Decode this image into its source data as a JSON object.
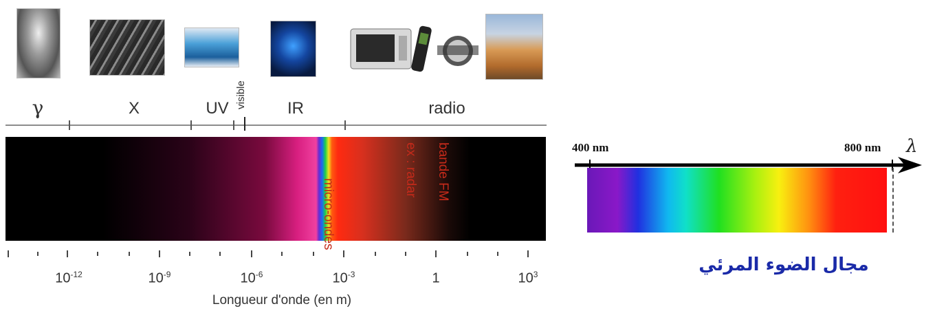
{
  "spectrum": {
    "bands": [
      {
        "id": "gamma",
        "label": "γ"
      },
      {
        "id": "x",
        "label": "X"
      },
      {
        "id": "uv",
        "label": "UV"
      },
      {
        "id": "visible",
        "label": "visible"
      },
      {
        "id": "ir",
        "label": "IR"
      },
      {
        "id": "radio",
        "label": "radio"
      }
    ],
    "band_texts": [
      "micro-ondes",
      "ex : radar",
      "bande FM"
    ],
    "ticks": [
      {
        "base": "10",
        "exp": "-12"
      },
      {
        "base": "10",
        "exp": "-9"
      },
      {
        "base": "10",
        "exp": "-6"
      },
      {
        "base": "10",
        "exp": "-3"
      },
      {
        "base": "1",
        "exp": ""
      },
      {
        "base": "10",
        "exp": "3"
      }
    ],
    "axis_label": "Longueur d'onde (en m)"
  },
  "visible_panel": {
    "start_label": "400 nm",
    "end_label": "800 nm",
    "lambda_symbol": "λ",
    "caption": "مجال الضوء المرئي",
    "caption_color": "#1a2aa8"
  }
}
